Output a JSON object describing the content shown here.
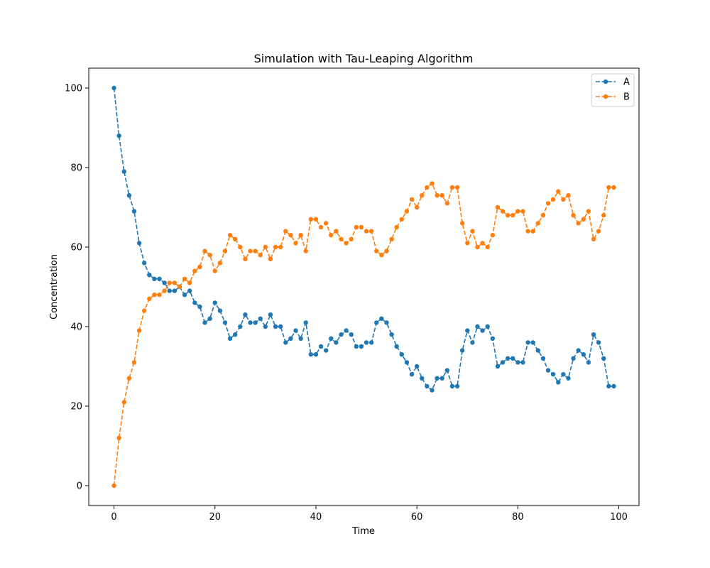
{
  "chart_data": {
    "type": "line",
    "title": "Simulation with Tau-Leaping Algorithm",
    "xlabel": "Time",
    "ylabel": "Concentration",
    "xlim": [
      -5,
      104
    ],
    "ylim": [
      -5,
      105
    ],
    "x_ticks": [
      0,
      20,
      40,
      60,
      80,
      100
    ],
    "y_ticks": [
      0,
      20,
      40,
      60,
      80,
      100
    ],
    "grid": false,
    "legend_position": "top-right",
    "x": [
      0,
      1,
      2,
      3,
      4,
      5,
      6,
      7,
      8,
      9,
      10,
      11,
      12,
      13,
      14,
      15,
      16,
      17,
      18,
      19,
      20,
      21,
      22,
      23,
      24,
      25,
      26,
      27,
      28,
      29,
      30,
      31,
      32,
      33,
      34,
      35,
      36,
      37,
      38,
      39,
      40,
      41,
      42,
      43,
      44,
      45,
      46,
      47,
      48,
      49,
      50,
      51,
      52,
      53,
      54,
      55,
      56,
      57,
      58,
      59,
      60,
      61,
      62,
      63,
      64,
      65,
      66,
      67,
      68,
      69,
      70,
      71,
      72,
      73,
      74,
      75,
      76,
      77,
      78,
      79,
      80,
      81,
      82,
      83,
      84,
      85,
      86,
      87,
      88,
      89,
      90,
      91,
      92,
      93,
      94,
      95,
      96,
      97,
      98,
      99
    ],
    "series": [
      {
        "name": "A",
        "color": "#1f77b4",
        "values": [
          100,
          88,
          79,
          73,
          69,
          61,
          56,
          53,
          52,
          52,
          51,
          49,
          49,
          50,
          48,
          49,
          46,
          45,
          41,
          42,
          46,
          44,
          41,
          37,
          38,
          40,
          43,
          41,
          41,
          42,
          40,
          43,
          40,
          40,
          36,
          37,
          39,
          37,
          41,
          33,
          33,
          35,
          34,
          37,
          36,
          38,
          39,
          38,
          35,
          35,
          36,
          36,
          41,
          42,
          41,
          38,
          35,
          33,
          31,
          28,
          30,
          27,
          25,
          24,
          27,
          27,
          29,
          25,
          25,
          34,
          39,
          36,
          40,
          39,
          40,
          37,
          30,
          31,
          32,
          32,
          31,
          31,
          36,
          36,
          34,
          32,
          29,
          28,
          26,
          28,
          27,
          32,
          34,
          33,
          31,
          38,
          36,
          32,
          25,
          25
        ]
      },
      {
        "name": "B",
        "color": "#ff7f0e",
        "values": [
          0,
          12,
          21,
          27,
          31,
          39,
          44,
          47,
          48,
          48,
          49,
          51,
          51,
          50,
          52,
          51,
          54,
          55,
          59,
          58,
          54,
          56,
          59,
          63,
          62,
          60,
          57,
          59,
          59,
          58,
          60,
          57,
          60,
          60,
          64,
          63,
          61,
          63,
          59,
          67,
          67,
          65,
          66,
          63,
          64,
          62,
          61,
          62,
          65,
          65,
          64,
          64,
          59,
          58,
          59,
          62,
          65,
          67,
          69,
          72,
          70,
          73,
          75,
          76,
          73,
          73,
          71,
          75,
          75,
          66,
          61,
          64,
          60,
          61,
          60,
          63,
          70,
          69,
          68,
          68,
          69,
          69,
          64,
          64,
          66,
          68,
          71,
          72,
          74,
          72,
          73,
          68,
          66,
          67,
          69,
          62,
          64,
          68,
          75,
          75
        ]
      }
    ]
  }
}
